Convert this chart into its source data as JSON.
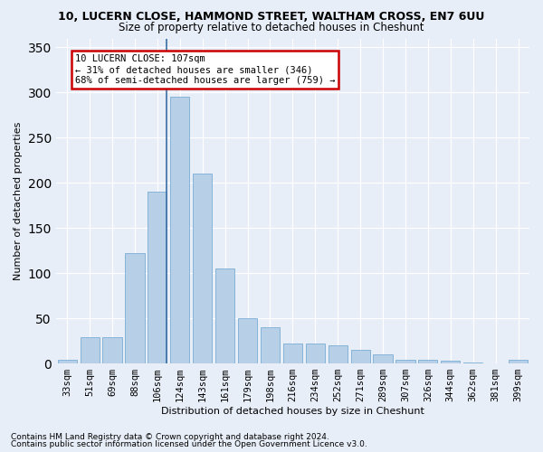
{
  "title1": "10, LUCERN CLOSE, HAMMOND STREET, WALTHAM CROSS, EN7 6UU",
  "title2": "Size of property relative to detached houses in Cheshunt",
  "xlabel": "Distribution of detached houses by size in Cheshunt",
  "ylabel": "Number of detached properties",
  "categories": [
    "33sqm",
    "51sqm",
    "69sqm",
    "88sqm",
    "106sqm",
    "124sqm",
    "143sqm",
    "161sqm",
    "179sqm",
    "198sqm",
    "216sqm",
    "234sqm",
    "252sqm",
    "271sqm",
    "289sqm",
    "307sqm",
    "326sqm",
    "344sqm",
    "362sqm",
    "381sqm",
    "399sqm"
  ],
  "values": [
    4,
    29,
    29,
    122,
    190,
    295,
    210,
    105,
    50,
    40,
    22,
    22,
    20,
    15,
    10,
    4,
    4,
    3,
    1,
    0,
    4
  ],
  "bar_color": "#b8cfe8",
  "bar_edge_color": "#7aadd4",
  "annotation_line1": "10 LUCERN CLOSE: 107sqm",
  "annotation_line2": "← 31% of detached houses are smaller (346)",
  "annotation_line3": "68% of semi-detached houses are larger (759) →",
  "box_facecolor": "#ffffff",
  "box_edgecolor": "#cc0000",
  "vline_bar_index": 4,
  "ylim": [
    0,
    360
  ],
  "yticks": [
    0,
    50,
    100,
    150,
    200,
    250,
    300,
    350
  ],
  "footnote1": "Contains HM Land Registry data © Crown copyright and database right 2024.",
  "footnote2": "Contains public sector information licensed under the Open Government Licence v3.0.",
  "background_color": "#e8eef8",
  "plot_bg_color": "#e8eef8",
  "title_fontsize": 9,
  "subtitle_fontsize": 8.5,
  "axis_label_fontsize": 8,
  "tick_fontsize": 7.5,
  "annotation_fontsize": 7.5,
  "footnote_fontsize": 6.5
}
